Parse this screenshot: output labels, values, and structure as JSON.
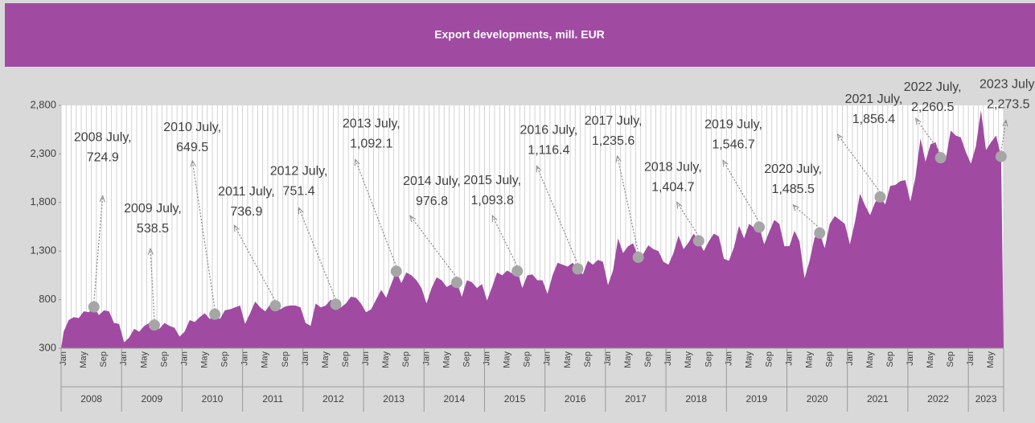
{
  "chart_data": {
    "type": "area",
    "title": "Export developments, mill. EUR",
    "color": "#a04aa2",
    "ylim": [
      300,
      2800
    ],
    "yticks": [
      300,
      800,
      {
        "value": 1300,
        "label": "1,300"
      },
      {
        "value": 1800,
        "label": "1,800"
      },
      {
        "value": 2300,
        "label": "2,300"
      },
      {
        "value": 2800,
        "label": "2,800"
      }
    ],
    "years": [
      "2008",
      "2009",
      "2010",
      "2011",
      "2012",
      "2013",
      "2014",
      "2015",
      "2016",
      "2017",
      "2018",
      "2019",
      "2020",
      "2021",
      "2022",
      "2023"
    ],
    "categories": [
      "Jan",
      null,
      null,
      null,
      "May",
      null,
      null,
      null,
      "Sep",
      null,
      null,
      null,
      "Jan",
      null,
      null,
      null,
      "May",
      null,
      null,
      null,
      "Sep",
      null,
      null,
      null,
      "Jan",
      null,
      null,
      null,
      "May",
      null,
      null,
      null,
      "Sep",
      null,
      null,
      null,
      "Jan",
      null,
      null,
      null,
      "May",
      null,
      null,
      null,
      "Sep",
      null,
      null,
      null,
      "Jan",
      null,
      null,
      null,
      "May",
      null,
      null,
      null,
      "Sep",
      null,
      null,
      null,
      "Jan",
      null,
      null,
      null,
      "May",
      null,
      null,
      null,
      "Sep",
      null,
      null,
      null,
      "Jan",
      null,
      null,
      null,
      "May",
      null,
      null,
      null,
      "Sep",
      null,
      null,
      null,
      "Jan",
      null,
      null,
      null,
      "May",
      null,
      null,
      null,
      "Sep",
      null,
      null,
      null,
      "Jan",
      null,
      null,
      null,
      "May",
      null,
      null,
      null,
      "Sep",
      null,
      null,
      null,
      "Jan",
      null,
      null,
      null,
      "May",
      null,
      null,
      null,
      "Sep",
      null,
      null,
      null,
      "Jan",
      null,
      null,
      null,
      "May",
      null,
      null,
      null,
      "Sep",
      null,
      null,
      null,
      "Jan",
      null,
      null,
      null,
      "May",
      null,
      null,
      null,
      "Sep",
      null,
      null,
      null,
      "Jan",
      null,
      null,
      null,
      "May",
      null,
      null,
      null,
      "Sep",
      null,
      null,
      null,
      "Jan",
      null,
      null,
      null,
      "May",
      null,
      null,
      null,
      "Sep",
      null,
      null,
      null,
      "Jan",
      null,
      null,
      null,
      "May",
      null,
      null,
      null,
      "Sep",
      null,
      null,
      null,
      "Jan",
      null,
      null,
      null,
      "May",
      null,
      null
    ],
    "values": [
      470,
      590,
      620,
      610,
      680,
      670,
      724.9,
      640,
      690,
      680,
      560,
      550,
      360,
      410,
      500,
      470,
      530,
      560,
      538.5,
      500,
      560,
      530,
      510,
      420,
      470,
      590,
      570,
      620,
      660,
      600,
      649.5,
      600,
      690,
      700,
      720,
      740,
      550,
      660,
      780,
      720,
      680,
      750,
      736.9,
      700,
      730,
      740,
      740,
      720,
      560,
      530,
      760,
      720,
      740,
      800,
      751.4,
      720,
      760,
      830,
      820,
      760,
      670,
      700,
      800,
      900,
      820,
      960,
      1092.1,
      970,
      1080,
      1050,
      1000,
      920,
      760,
      920,
      1030,
      1000,
      930,
      960,
      976.8,
      830,
      1000,
      980,
      920,
      960,
      790,
      930,
      1080,
      1050,
      1100,
      1070,
      1093.8,
      920,
      1050,
      1060,
      1000,
      1000,
      860,
      1050,
      1180,
      1160,
      1140,
      1180,
      1116.4,
      1060,
      1200,
      1160,
      1210,
      1190,
      950,
      1100,
      1430,
      1280,
      1350,
      1380,
      1235.6,
      1270,
      1360,
      1320,
      1300,
      1190,
      1160,
      1280,
      1460,
      1320,
      1390,
      1480,
      1404.7,
      1300,
      1400,
      1480,
      1450,
      1220,
      1200,
      1340,
      1560,
      1430,
      1580,
      1540,
      1546.7,
      1370,
      1500,
      1620,
      1580,
      1350,
      1350,
      1510,
      1400,
      1020,
      1200,
      1440,
      1485.5,
      1330,
      1580,
      1660,
      1620,
      1580,
      1370,
      1600,
      1890,
      1770,
      1670,
      1800,
      1856.4,
      1780,
      1970,
      1980,
      2020,
      2030,
      1810,
      2060,
      2460,
      2220,
      2400,
      2420,
      2260.5,
      2240,
      2540,
      2490,
      2470,
      2320,
      2200,
      2380,
      2750,
      2340,
      2420,
      2490,
      2273.5
    ],
    "value_labels": [
      null,
      null,
      null,
      null,
      null,
      null,
      "2008 July, 724.9",
      null,
      null,
      null,
      null,
      null,
      null,
      null,
      null,
      null,
      null,
      null,
      "2009 July, 538.5",
      null,
      null,
      null,
      null,
      null,
      null,
      null,
      null,
      null,
      null,
      null,
      "2010 July, 649.5",
      null,
      null,
      null,
      null,
      null,
      null,
      null,
      null,
      null,
      null,
      null,
      "2011 July, 736.9",
      null,
      null,
      null,
      null,
      null,
      null,
      null,
      null,
      null,
      null,
      null,
      "2012 July, 751.4",
      null,
      null,
      null,
      null,
      null,
      null,
      null,
      null,
      null,
      null,
      null,
      "2013 July, 1,092.1",
      null,
      null,
      null,
      null,
      null,
      null,
      null,
      null,
      null,
      null,
      null,
      "2014 July, 976.8",
      null,
      null,
      null,
      null,
      null,
      null,
      null,
      null,
      null,
      null,
      null,
      "2015 July, 1,093.8",
      null,
      null,
      null,
      null,
      null,
      null,
      null,
      null,
      null,
      null,
      null,
      "2016 July, 1,116.4",
      null,
      null,
      null,
      null,
      null,
      null,
      null,
      null,
      null,
      null,
      null,
      "2017 July, 1,235.6",
      null,
      null,
      null,
      null,
      null,
      null,
      null,
      null,
      null,
      null,
      null,
      "2018 July, 1,404.7",
      null,
      null,
      null,
      null,
      null,
      null,
      null,
      null,
      null,
      null,
      null,
      "2019 July, 1,546.7",
      null,
      null,
      null,
      null,
      null,
      null,
      null,
      null,
      null,
      null,
      null,
      "2020 July, 1,485.5",
      null,
      null,
      null,
      null,
      null,
      null,
      null,
      null,
      null,
      null,
      null,
      "2021 July, 1,856.4",
      null,
      null,
      null,
      null,
      null,
      null,
      null,
      null,
      null,
      null,
      null,
      "2022 July, 2,260.5",
      null,
      null,
      null,
      null,
      null,
      null,
      null,
      null,
      null,
      null,
      null,
      "2023 July, 2,273.5"
    ],
    "grid": true
  }
}
